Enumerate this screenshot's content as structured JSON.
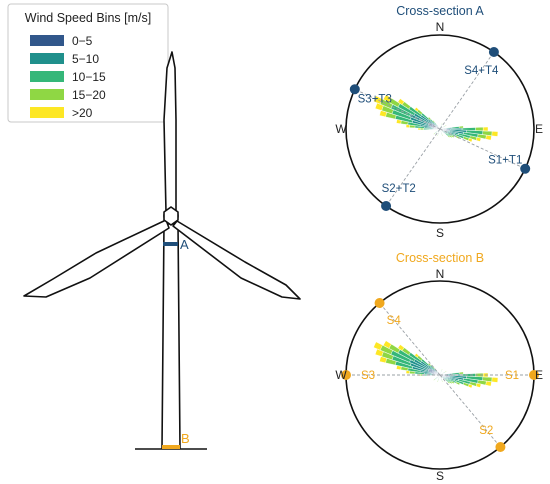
{
  "legend": {
    "title": "Wind Speed Bins [m/s]",
    "bins": [
      {
        "label": "0−5",
        "color": "#31578b"
      },
      {
        "label": "5−10",
        "color": "#20908c"
      },
      {
        "label": "10−15",
        "color": "#35b779"
      },
      {
        "label": "15−20",
        "color": "#8fd744"
      },
      {
        "label": ">20",
        "color": "#fde725"
      }
    ]
  },
  "turbine": {
    "marker_a": "A",
    "marker_b": "B",
    "color_a": "#1f4e79",
    "color_b": "#f0a81e"
  },
  "rose_a": {
    "title": "Cross-section A",
    "color": "#1f4e79",
    "compass": {
      "n": "N",
      "e": "E",
      "s": "S",
      "w": "W"
    },
    "sensors": [
      {
        "label": "S4+T4",
        "angle_deg": 35
      },
      {
        "label": "S3+T3",
        "angle_deg": 295
      },
      {
        "label": "S2+T2",
        "angle_deg": 215
      },
      {
        "label": "S1+T1",
        "angle_deg": 115
      }
    ]
  },
  "rose_b": {
    "title": "Cross-section B",
    "color": "#f0a81e",
    "compass": {
      "n": "N",
      "e": "E",
      "s": "S",
      "w": "W"
    },
    "sensors": [
      {
        "label": "S4",
        "angle_deg": 320
      },
      {
        "label": "S3",
        "angle_deg": 270
      },
      {
        "label": "S2",
        "angle_deg": 140
      },
      {
        "label": "S1",
        "angle_deg": 90
      }
    ]
  }
}
